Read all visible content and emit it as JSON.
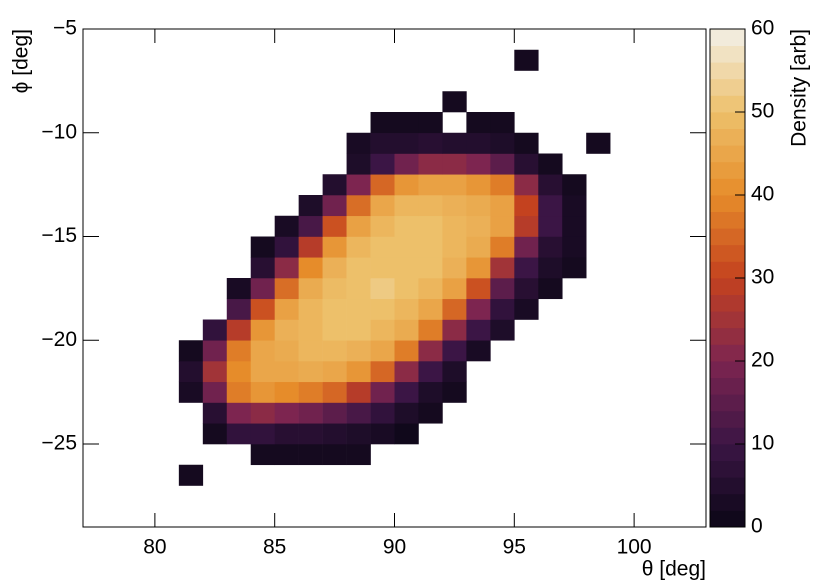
{
  "chart_data": {
    "type": "heatmap",
    "xlabel": "θ [deg]",
    "ylabel": "ϕ [deg]",
    "zlabel": "Density [arb]",
    "xlim": [
      77,
      103
    ],
    "ylim": [
      -29,
      -5
    ],
    "zlim": [
      0,
      60
    ],
    "xticks": [
      80,
      85,
      90,
      95,
      100
    ],
    "yticks": [
      {
        "value": -25,
        "label": "−25"
      },
      {
        "value": -20,
        "label": "−20"
      },
      {
        "value": -15,
        "label": "−15"
      },
      {
        "value": -10,
        "label": "−10"
      },
      {
        "value": -5,
        "label": "−5"
      }
    ],
    "zticks": [
      0,
      10,
      20,
      30,
      40,
      50,
      60
    ],
    "colormap": [
      "#0b0716",
      "#3b1545",
      "#7d2550",
      "#c4421f",
      "#e68c2a",
      "#edc06a",
      "#f3f0e8"
    ],
    "xbins": [
      81,
      82,
      83,
      84,
      85,
      86,
      87,
      88,
      89,
      90,
      91,
      92,
      93,
      94,
      95,
      96,
      97,
      98,
      99
    ],
    "ybins": [
      -27,
      -26,
      -25,
      -24,
      -23,
      -22,
      -21,
      -20,
      -19,
      -18,
      -17,
      -16,
      -15,
      -14,
      -13,
      -12,
      -11,
      -10,
      -9,
      -8,
      -7,
      -6
    ],
    "z": [
      [
        2,
        0,
        0,
        0,
        0,
        0,
        0,
        0,
        0,
        0,
        0,
        0,
        0,
        0,
        0,
        0,
        0,
        0
      ],
      [
        0,
        0,
        0,
        2,
        2,
        2,
        2,
        2,
        0,
        0,
        0,
        0,
        0,
        0,
        0,
        0,
        0,
        0
      ],
      [
        0,
        2,
        8,
        8,
        6,
        6,
        5,
        4,
        3,
        1,
        0,
        0,
        0,
        0,
        0,
        0,
        0,
        0
      ],
      [
        0,
        6,
        20,
        22,
        20,
        18,
        15,
        12,
        8,
        4,
        2,
        0,
        0,
        0,
        0,
        0,
        0,
        0
      ],
      [
        3,
        18,
        38,
        42,
        40,
        38,
        35,
        28,
        18,
        10,
        4,
        2,
        0,
        0,
        0,
        0,
        0,
        0
      ],
      [
        5,
        25,
        40,
        45,
        45,
        46,
        45,
        42,
        35,
        22,
        10,
        4,
        0,
        0,
        0,
        0,
        0,
        0
      ],
      [
        2,
        18,
        38,
        45,
        46,
        48,
        48,
        47,
        45,
        38,
        22,
        10,
        3,
        0,
        0,
        0,
        0,
        0
      ],
      [
        0,
        8,
        28,
        42,
        47,
        48,
        50,
        50,
        48,
        46,
        38,
        22,
        10,
        4,
        0,
        0,
        0,
        0
      ],
      [
        0,
        0,
        12,
        32,
        44,
        48,
        50,
        50,
        50,
        48,
        45,
        35,
        20,
        8,
        3,
        0,
        0,
        0
      ],
      [
        0,
        0,
        3,
        18,
        36,
        46,
        49,
        50,
        52,
        50,
        48,
        44,
        32,
        15,
        6,
        2,
        0,
        0
      ],
      [
        0,
        0,
        0,
        6,
        22,
        40,
        47,
        50,
        50,
        50,
        50,
        47,
        42,
        25,
        10,
        4,
        2,
        0
      ],
      [
        0,
        0,
        0,
        2,
        8,
        28,
        42,
        48,
        50,
        50,
        50,
        48,
        46,
        38,
        18,
        6,
        3,
        0
      ],
      [
        0,
        0,
        0,
        0,
        3,
        12,
        32,
        44,
        48,
        50,
        50,
        48,
        47,
        44,
        28,
        10,
        3,
        0
      ],
      [
        0,
        0,
        0,
        0,
        0,
        4,
        18,
        36,
        45,
        48,
        48,
        47,
        46,
        44,
        30,
        10,
        3,
        0
      ],
      [
        0,
        0,
        0,
        0,
        0,
        0,
        5,
        20,
        35,
        42,
        44,
        44,
        42,
        38,
        22,
        6,
        2,
        0
      ],
      [
        0,
        0,
        0,
        0,
        0,
        0,
        0,
        4,
        10,
        18,
        22,
        22,
        20,
        15,
        6,
        2,
        0,
        0
      ],
      [
        0,
        0,
        0,
        0,
        0,
        0,
        0,
        3,
        5,
        5,
        6,
        5,
        5,
        4,
        2,
        0,
        0,
        2
      ],
      [
        0,
        0,
        0,
        0,
        0,
        0,
        0,
        0,
        2,
        2,
        2,
        0,
        2,
        2,
        0,
        0,
        0,
        0
      ],
      [
        0,
        0,
        0,
        0,
        0,
        0,
        0,
        0,
        0,
        0,
        0,
        2,
        0,
        0,
        0,
        0,
        0,
        0
      ],
      [
        0,
        0,
        0,
        0,
        0,
        0,
        0,
        0,
        0,
        0,
        0,
        0,
        0,
        0,
        0,
        0,
        0,
        0
      ],
      [
        0,
        0,
        0,
        0,
        0,
        0,
        0,
        0,
        0,
        0,
        0,
        0,
        0,
        0,
        2,
        0,
        0,
        0
      ]
    ]
  }
}
